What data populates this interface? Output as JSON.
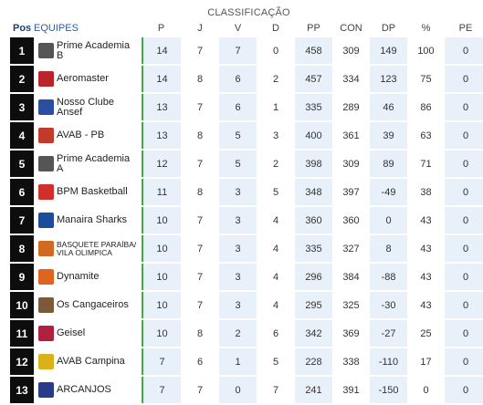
{
  "title": "CLASSIFICAÇÃO",
  "headers": {
    "pos": "Pos",
    "team": "EQUIPES",
    "p": "P",
    "j": "J",
    "v": "V",
    "d": "D",
    "pp": "PP",
    "con": "CON",
    "dp": "DP",
    "pct": "%",
    "pe": "PE"
  },
  "rows": [
    {
      "pos": "1",
      "line1": "Prime Academia",
      "line2": "B",
      "logo": "prime-academia-logo",
      "color": "#555555",
      "p": "14",
      "j": "7",
      "v": "7",
      "d": "0",
      "pp": "458",
      "con": "309",
      "dp": "149",
      "pct": "100",
      "pe": "0"
    },
    {
      "pos": "2",
      "line1": "Aeromaster",
      "line2": "",
      "logo": "aeromaster-logo",
      "color": "#b8252a",
      "p": "14",
      "j": "8",
      "v": "6",
      "d": "2",
      "pp": "457",
      "con": "334",
      "dp": "123",
      "pct": "75",
      "pe": "0"
    },
    {
      "pos": "3",
      "line1": "Nosso Clube",
      "line2": "Ansef",
      "logo": "nosso-clube-logo",
      "color": "#2a4fa0",
      "p": "13",
      "j": "7",
      "v": "6",
      "d": "1",
      "pp": "335",
      "con": "289",
      "dp": "46",
      "pct": "86",
      "pe": "0"
    },
    {
      "pos": "4",
      "line1": "AVAB - PB",
      "line2": "",
      "logo": "avab-pb-logo",
      "color": "#c23a2a",
      "p": "13",
      "j": "8",
      "v": "5",
      "d": "3",
      "pp": "400",
      "con": "361",
      "dp": "39",
      "pct": "63",
      "pe": "0"
    },
    {
      "pos": "5",
      "line1": "Prime Academia",
      "line2": "A",
      "logo": "prime-academia-logo",
      "color": "#555555",
      "p": "12",
      "j": "7",
      "v": "5",
      "d": "2",
      "pp": "398",
      "con": "309",
      "dp": "89",
      "pct": "71",
      "pe": "0"
    },
    {
      "pos": "6",
      "line1": "BPM Basketball",
      "line2": "",
      "logo": "bpm-basketball-logo",
      "color": "#d0302a",
      "p": "11",
      "j": "8",
      "v": "3",
      "d": "5",
      "pp": "348",
      "con": "397",
      "dp": "-49",
      "pct": "38",
      "pe": "0"
    },
    {
      "pos": "7",
      "line1": "Manaira Sharks",
      "line2": "",
      "logo": "manaira-sharks-logo",
      "color": "#1d4d9a",
      "p": "10",
      "j": "7",
      "v": "3",
      "d": "4",
      "pp": "360",
      "con": "360",
      "dp": "0",
      "pct": "43",
      "pe": "0"
    },
    {
      "pos": "8",
      "line1": "BASQUETE PARAÍBA/",
      "line2": "VILA OLIMPICA",
      "small": true,
      "logo": "basquete-paraiba-logo",
      "color": "#d06a20",
      "p": "10",
      "j": "7",
      "v": "3",
      "d": "4",
      "pp": "335",
      "con": "327",
      "dp": "8",
      "pct": "43",
      "pe": "0"
    },
    {
      "pos": "9",
      "line1": "Dynamite",
      "line2": "",
      "logo": "dynamite-logo",
      "color": "#e06420",
      "p": "10",
      "j": "7",
      "v": "3",
      "d": "4",
      "pp": "296",
      "con": "384",
      "dp": "-88",
      "pct": "43",
      "pe": "0"
    },
    {
      "pos": "10",
      "line1": "Os Cangaceiros",
      "line2": "",
      "logo": "os-cangaceiros-logo",
      "color": "#7a5a3a",
      "p": "10",
      "j": "7",
      "v": "3",
      "d": "4",
      "pp": "295",
      "con": "325",
      "dp": "-30",
      "pct": "43",
      "pe": "0"
    },
    {
      "pos": "11",
      "line1": "Geisel",
      "line2": "",
      "logo": "geisel-logo",
      "color": "#b02040",
      "p": "10",
      "j": "8",
      "v": "2",
      "d": "6",
      "pp": "342",
      "con": "369",
      "dp": "-27",
      "pct": "25",
      "pe": "0"
    },
    {
      "pos": "12",
      "line1": "AVAB Campina",
      "line2": "",
      "logo": "avab-campina-logo",
      "color": "#d9b21a",
      "p": "7",
      "j": "6",
      "v": "1",
      "d": "5",
      "pp": "228",
      "con": "338",
      "dp": "-110",
      "pct": "17",
      "pe": "0"
    },
    {
      "pos": "13",
      "line1": "ARCANJOS",
      "line2": "",
      "logo": "arcanjos-logo",
      "color": "#2a3a8a",
      "p": "7",
      "j": "7",
      "v": "0",
      "d": "7",
      "pp": "241",
      "con": "391",
      "dp": "-150",
      "pct": "0",
      "pe": "0"
    }
  ]
}
